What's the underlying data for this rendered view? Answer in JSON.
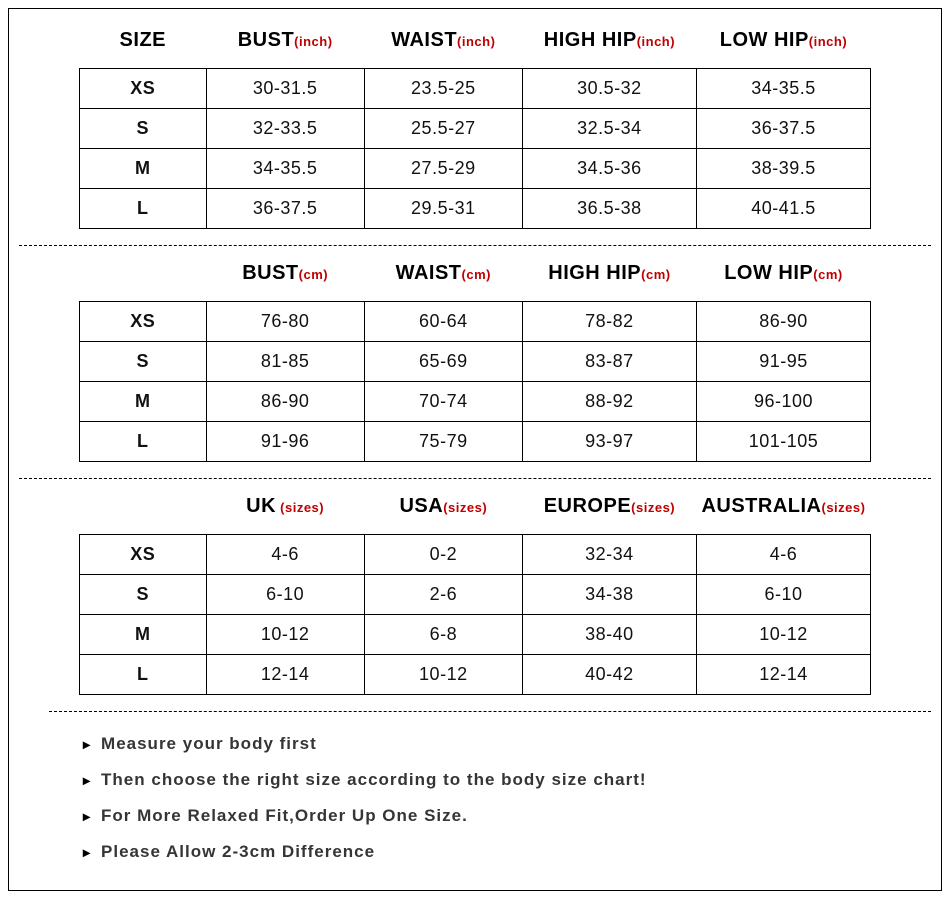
{
  "colors": {
    "unit_color": "#c00000",
    "text_color": "#111111",
    "note_color": "#353535",
    "border_color": "#000000",
    "background": "#ffffff"
  },
  "tables": [
    {
      "show_size_header": true,
      "size_header": "SIZE",
      "headers": [
        {
          "label": "BUST",
          "unit": "(inch)"
        },
        {
          "label": "WAIST",
          "unit": "(inch)"
        },
        {
          "label": "HIGH HIP",
          "unit": "(inch)"
        },
        {
          "label": "LOW HIP",
          "unit": "(inch)"
        }
      ],
      "rows": [
        {
          "size": "XS",
          "cells": [
            "30-31.5",
            "23.5-25",
            "30.5-32",
            "34-35.5"
          ]
        },
        {
          "size": "S",
          "cells": [
            "32-33.5",
            "25.5-27",
            "32.5-34",
            "36-37.5"
          ]
        },
        {
          "size": "M",
          "cells": [
            "34-35.5",
            "27.5-29",
            "34.5-36",
            "38-39.5"
          ]
        },
        {
          "size": "L",
          "cells": [
            "36-37.5",
            "29.5-31",
            "36.5-38",
            "40-41.5"
          ]
        }
      ]
    },
    {
      "show_size_header": false,
      "size_header": "",
      "headers": [
        {
          "label": "BUST",
          "unit": "(cm)"
        },
        {
          "label": "WAIST",
          "unit": "(cm)"
        },
        {
          "label": "HIGH HIP",
          "unit": "(cm)"
        },
        {
          "label": "LOW HIP",
          "unit": "(cm)"
        }
      ],
      "rows": [
        {
          "size": "XS",
          "cells": [
            "76-80",
            "60-64",
            "78-82",
            "86-90"
          ]
        },
        {
          "size": "S",
          "cells": [
            "81-85",
            "65-69",
            "83-87",
            "91-95"
          ]
        },
        {
          "size": "M",
          "cells": [
            "86-90",
            "70-74",
            "88-92",
            "96-100"
          ]
        },
        {
          "size": "L",
          "cells": [
            "91-96",
            "75-79",
            "93-97",
            "101-105"
          ]
        }
      ]
    },
    {
      "show_size_header": false,
      "size_header": "",
      "headers": [
        {
          "label": "UK",
          "unit": " (sizes)"
        },
        {
          "label": "USA",
          "unit": "(sizes)"
        },
        {
          "label": "EUROPE",
          "unit": "(sizes)"
        },
        {
          "label": "AUSTRALIA",
          "unit": "(sizes)"
        }
      ],
      "rows": [
        {
          "size": "XS",
          "cells": [
            "4-6",
            "0-2",
            "32-34",
            "4-6"
          ]
        },
        {
          "size": "S",
          "cells": [
            "6-10",
            "2-6",
            "34-38",
            "6-10"
          ]
        },
        {
          "size": "M",
          "cells": [
            "10-12",
            "6-8",
            "38-40",
            "10-12"
          ]
        },
        {
          "size": "L",
          "cells": [
            "12-14",
            "10-12",
            "40-42",
            "12-14"
          ]
        }
      ]
    }
  ],
  "notes": [
    "Measure your body first",
    "Then choose the right size according to the body size chart!",
    "For More Relaxed Fit,Order Up One Size.",
    "Please Allow 2-3cm Difference"
  ]
}
